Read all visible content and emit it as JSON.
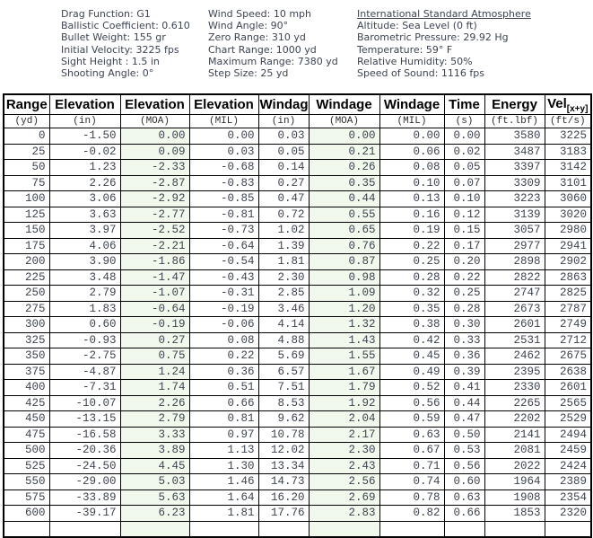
{
  "info": {
    "left": [
      "Drag Function: G1",
      "Ballistic Coefficient: 0.610",
      "Bullet Weight: 155 gr",
      "Initial Velocity: 3225 fps",
      "Sight Height : 1.5 in",
      "Shooting Angle: 0°"
    ],
    "middle": [
      "Wind Speed: 10 mph",
      "Wind Angle: 90°",
      "Zero Range: 310 yd",
      "Chart Range: 1000 yd",
      "Maximum Range: 7380 yd",
      "Step Size: 25 yd"
    ],
    "right_title": "International Standard Atmosphere",
    "right": [
      "Altitude: Sea Level (0 ft)",
      "Barometric Pressure: 29.92 Hg",
      "Temperature: 59° F",
      "Relative Humidity: 50%",
      "Speed of Sound: 1116 fps"
    ]
  },
  "table": {
    "highlight_color": "#f1f9ec",
    "columns": [
      {
        "label": "Range",
        "unit": "(yd)"
      },
      {
        "label": "Elevation",
        "unit": "(in)"
      },
      {
        "label": "Elevation",
        "unit": "(MOA)",
        "highlight": true
      },
      {
        "label": "Elevation",
        "unit": "(MIL)"
      },
      {
        "label": "Windage",
        "unit": "(in)"
      },
      {
        "label": "Windage",
        "unit": "(MOA)",
        "highlight": true
      },
      {
        "label": "Windage",
        "unit": "(MIL)"
      },
      {
        "label": "Time",
        "unit": "(s)"
      },
      {
        "label": "Energy",
        "unit": "(ft.lbf)"
      },
      {
        "label": "Vel",
        "label_sub": "[x+y]",
        "unit": "(ft/s)"
      }
    ],
    "rows": [
      [
        "0",
        "-1.50",
        "0.00",
        "0.00",
        "0.03",
        "0.00",
        "0.00",
        "0.00",
        "3580",
        "3225"
      ],
      [
        "25",
        "-0.02",
        "0.09",
        "0.03",
        "0.05",
        "0.21",
        "0.06",
        "0.02",
        "3487",
        "3183"
      ],
      [
        "50",
        "1.23",
        "-2.33",
        "-0.68",
        "0.14",
        "0.26",
        "0.08",
        "0.05",
        "3397",
        "3142"
      ],
      [
        "75",
        "2.26",
        "-2.87",
        "-0.83",
        "0.27",
        "0.35",
        "0.10",
        "0.07",
        "3309",
        "3101"
      ],
      [
        "100",
        "3.06",
        "-2.92",
        "-0.85",
        "0.47",
        "0.44",
        "0.13",
        "0.10",
        "3223",
        "3060"
      ],
      [
        "125",
        "3.63",
        "-2.77",
        "-0.81",
        "0.72",
        "0.55",
        "0.16",
        "0.12",
        "3139",
        "3020"
      ],
      [
        "150",
        "3.97",
        "-2.52",
        "-0.73",
        "1.02",
        "0.65",
        "0.19",
        "0.15",
        "3057",
        "2980"
      ],
      [
        "175",
        "4.06",
        "-2.21",
        "-0.64",
        "1.39",
        "0.76",
        "0.22",
        "0.17",
        "2977",
        "2941"
      ],
      [
        "200",
        "3.90",
        "-1.86",
        "-0.54",
        "1.81",
        "0.87",
        "0.25",
        "0.20",
        "2898",
        "2902"
      ],
      [
        "225",
        "3.48",
        "-1.47",
        "-0.43",
        "2.30",
        "0.98",
        "0.28",
        "0.22",
        "2822",
        "2863"
      ],
      [
        "250",
        "2.79",
        "-1.07",
        "-0.31",
        "2.85",
        "1.09",
        "0.32",
        "0.25",
        "2747",
        "2825"
      ],
      [
        "275",
        "1.83",
        "-0.64",
        "-0.19",
        "3.46",
        "1.20",
        "0.35",
        "0.28",
        "2673",
        "2787"
      ],
      [
        "300",
        "0.60",
        "-0.19",
        "-0.06",
        "4.14",
        "1.32",
        "0.38",
        "0.30",
        "2601",
        "2749"
      ],
      [
        "325",
        "-0.93",
        "0.27",
        "0.08",
        "4.88",
        "1.43",
        "0.42",
        "0.33",
        "2531",
        "2712"
      ],
      [
        "350",
        "-2.75",
        "0.75",
        "0.22",
        "5.69",
        "1.55",
        "0.45",
        "0.36",
        "2462",
        "2675"
      ],
      [
        "375",
        "-4.87",
        "1.24",
        "0.36",
        "6.57",
        "1.67",
        "0.49",
        "0.39",
        "2395",
        "2638"
      ],
      [
        "400",
        "-7.31",
        "1.74",
        "0.51",
        "7.51",
        "1.79",
        "0.52",
        "0.41",
        "2330",
        "2601"
      ],
      [
        "425",
        "-10.07",
        "2.26",
        "0.66",
        "8.53",
        "1.92",
        "0.56",
        "0.44",
        "2265",
        "2565"
      ],
      [
        "450",
        "-13.15",
        "2.79",
        "0.81",
        "9.62",
        "2.04",
        "0.59",
        "0.47",
        "2202",
        "2529"
      ],
      [
        "475",
        "-16.58",
        "3.33",
        "0.97",
        "10.78",
        "2.17",
        "0.63",
        "0.50",
        "2141",
        "2494"
      ],
      [
        "500",
        "-20.36",
        "3.89",
        "1.13",
        "12.02",
        "2.30",
        "0.67",
        "0.53",
        "2081",
        "2459"
      ],
      [
        "525",
        "-24.50",
        "4.45",
        "1.30",
        "13.34",
        "2.43",
        "0.71",
        "0.56",
        "2022",
        "2424"
      ],
      [
        "550",
        "-29.00",
        "5.03",
        "1.46",
        "14.73",
        "2.56",
        "0.74",
        "0.60",
        "1964",
        "2389"
      ],
      [
        "575",
        "-33.89",
        "5.63",
        "1.64",
        "16.20",
        "2.69",
        "0.78",
        "0.63",
        "1908",
        "2354"
      ],
      [
        "600",
        "-39.17",
        "6.23",
        "1.81",
        "17.76",
        "2.83",
        "0.82",
        "0.66",
        "1853",
        "2320"
      ]
    ]
  }
}
